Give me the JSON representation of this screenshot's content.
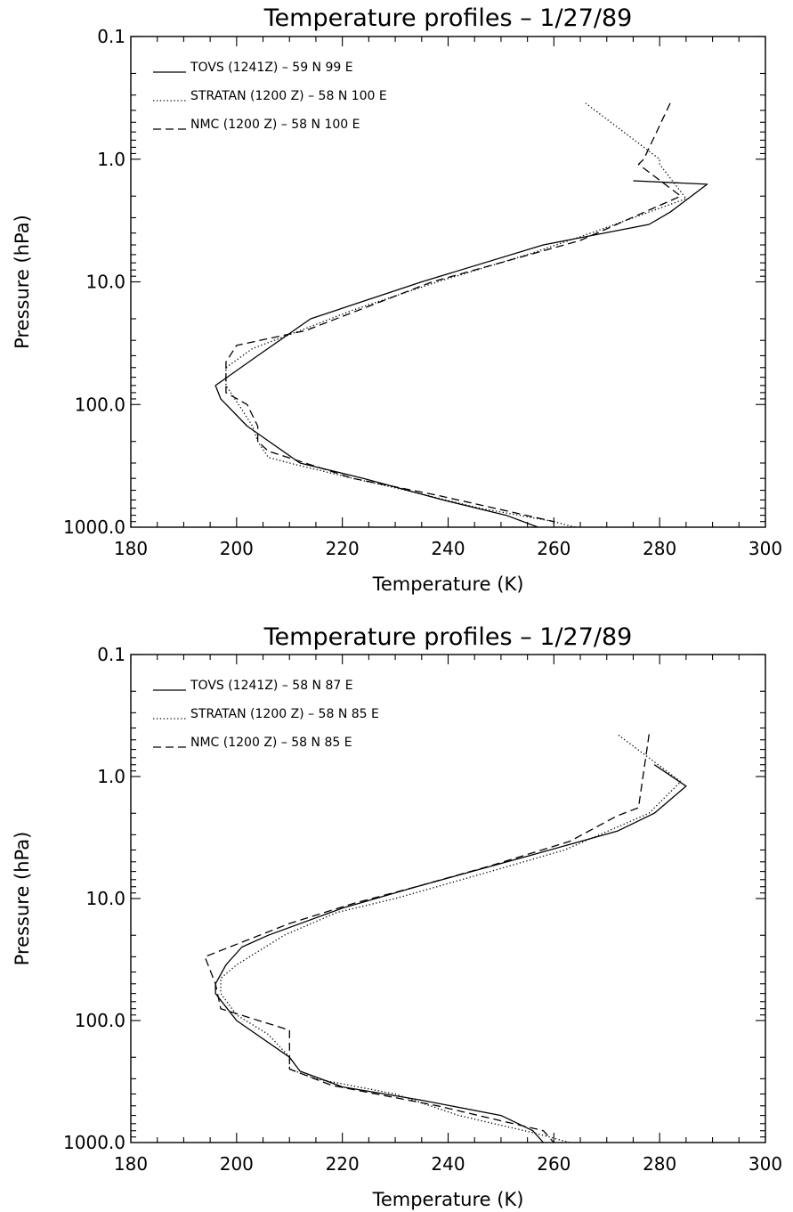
{
  "chart_data": [
    {
      "type": "line",
      "title": "Temperature profiles –  1/27/89",
      "xlabel": "Temperature (K)",
      "ylabel": "Pressure (hPa)",
      "xlim": [
        180,
        300
      ],
      "ylim": [
        1000,
        0.1
      ],
      "yscale": "log",
      "xticks": [
        "180",
        "200",
        "220",
        "240",
        "260",
        "280",
        "300"
      ],
      "yticks": [
        "0.1",
        "1.0",
        "10.0",
        "100.0",
        "1000.0"
      ],
      "grid": false,
      "legend_position": "top-left",
      "series": [
        {
          "name": "TOVS (1241Z) – 59 N  99 E",
          "style": "solid",
          "points": [
            [
              275,
              1.5
            ],
            [
              289,
              1.6
            ],
            [
              282,
              2.7
            ],
            [
              278,
              3.4
            ],
            [
              258,
              5
            ],
            [
              235,
              10
            ],
            [
              214,
              20
            ],
            [
              204,
              40
            ],
            [
              196,
              70
            ],
            [
              197,
              90
            ],
            [
              202,
              150
            ],
            [
              212,
              300
            ],
            [
              224,
              400
            ],
            [
              239,
              600
            ],
            [
              251,
              800
            ],
            [
              257,
              1000
            ]
          ]
        },
        {
          "name": "STRATAN (1200 Z) – 58 N 100 E",
          "style": "dotted",
          "points": [
            [
              264,
              1000
            ],
            [
              260,
              900
            ],
            [
              246,
              700
            ],
            [
              232,
              500
            ],
            [
              222,
              400
            ],
            [
              210,
              300
            ],
            [
              206,
              270
            ],
            [
              204,
              200
            ],
            [
              203,
              150
            ],
            [
              201,
              110
            ],
            [
              198,
              70
            ],
            [
              198,
              50
            ],
            [
              203,
              35
            ],
            [
              212,
              25
            ],
            [
              222,
              17
            ],
            [
              238,
              10
            ],
            [
              255,
              6
            ],
            [
              267,
              4
            ],
            [
              285,
              2.1
            ],
            [
              280,
              1.1
            ],
            [
              280,
              1.0
            ],
            [
              266,
              0.35
            ]
          ]
        },
        {
          "name": "NMC (1200 Z) – 58 N 100 E",
          "style": "dashed",
          "points": [
            [
              282,
              0.35
            ],
            [
              277,
              1.0
            ],
            [
              276,
              1.1
            ],
            [
              284,
              2.0
            ],
            [
              265,
              4.6
            ],
            [
              237,
              10
            ],
            [
              213,
              25
            ],
            [
              200,
              33
            ],
            [
              198,
              45
            ],
            [
              198,
              80
            ],
            [
              202,
              100
            ],
            [
              204,
              150
            ],
            [
              204,
              200
            ],
            [
              206,
              240
            ],
            [
              222,
              400
            ],
            [
              238,
              550
            ],
            [
              260,
              900
            ],
            [
              260,
              1000
            ]
          ]
        }
      ]
    },
    {
      "type": "line",
      "title": "Temperature profiles –  1/27/89",
      "xlabel": "Temperature (K)",
      "ylabel": "Pressure (hPa)",
      "xlim": [
        180,
        300
      ],
      "ylim": [
        1000,
        0.1
      ],
      "yscale": "log",
      "xticks": [
        "180",
        "200",
        "220",
        "240",
        "260",
        "280",
        "300"
      ],
      "yticks": [
        "0.1",
        "1.0",
        "10.0",
        "100.0",
        "1000.0"
      ],
      "grid": false,
      "legend_position": "top-left",
      "series": [
        {
          "name": "TOVS (1241Z) – 58 N  87 E",
          "style": "solid",
          "points": [
            [
              279,
              0.8
            ],
            [
              285,
              1.2
            ],
            [
              279,
              2.0
            ],
            [
              272,
              2.8
            ],
            [
              255,
              4.5
            ],
            [
              234,
              8
            ],
            [
              220,
              12
            ],
            [
              206,
              20
            ],
            [
              201,
              25
            ],
            [
              198,
              35
            ],
            [
              196,
              50
            ],
            [
              196,
              60
            ],
            [
              200,
              100
            ],
            [
              210,
              200
            ],
            [
              212,
              260
            ],
            [
              220,
              350
            ],
            [
              235,
              450
            ],
            [
              250,
              600
            ],
            [
              256,
              800
            ],
            [
              258,
              1000
            ]
          ]
        },
        {
          "name": "STRATAN (1200 Z) – 58 N  85 E",
          "style": "dotted",
          "points": [
            [
              263,
              1000
            ],
            [
              257,
              850
            ],
            [
              242,
              600
            ],
            [
              230,
              400
            ],
            [
              215,
              300
            ],
            [
              210,
              250
            ],
            [
              210,
              200
            ],
            [
              206,
              130
            ],
            [
              200,
              90
            ],
            [
              197,
              60
            ],
            [
              197,
              45
            ],
            [
              200,
              35
            ],
            [
              209,
              20
            ],
            [
              219,
              13
            ],
            [
              230,
              10
            ],
            [
              248,
              6
            ],
            [
              262,
              4
            ],
            [
              278,
              2.0
            ],
            [
              284,
              1.1
            ],
            [
              272,
              0.45
            ]
          ]
        },
        {
          "name": "NMC (1200 Z) – 58 N  85 E",
          "style": "dashed",
          "points": [
            [
              278,
              0.45
            ],
            [
              276,
              1.8
            ],
            [
              272,
              2.1
            ],
            [
              263,
              3.4
            ],
            [
              248,
              5.4
            ],
            [
              234,
              8
            ],
            [
              222,
              11
            ],
            [
              210,
              16
            ],
            [
              194,
              30
            ],
            [
              196,
              50
            ],
            [
              197,
              80
            ],
            [
              210,
              120
            ],
            [
              210,
              250
            ],
            [
              218,
              340
            ],
            [
              238,
              500
            ],
            [
              258,
              800
            ],
            [
              260,
              1000
            ]
          ]
        }
      ]
    }
  ]
}
